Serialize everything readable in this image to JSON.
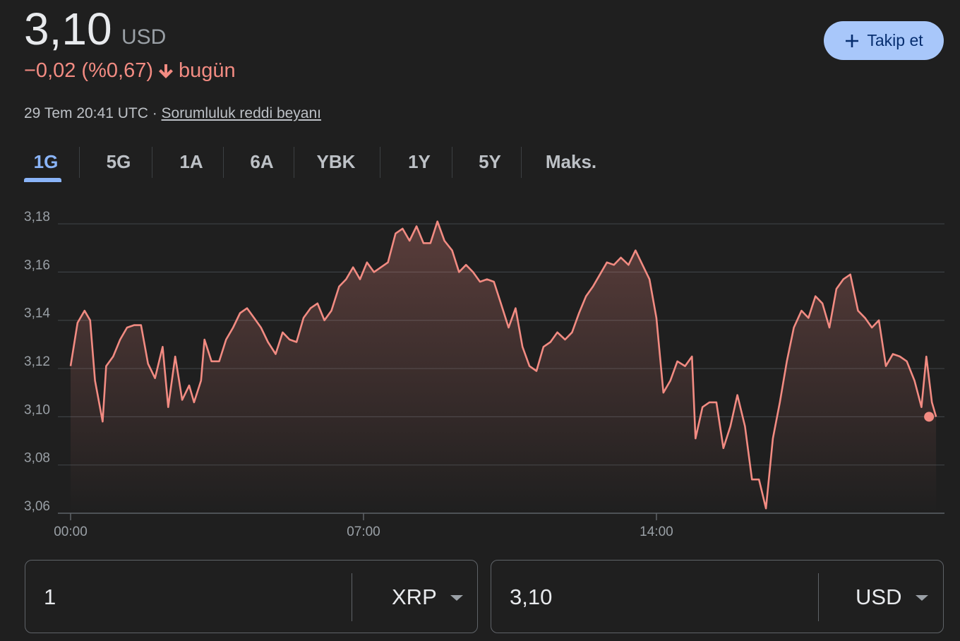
{
  "header": {
    "price": "3,10",
    "currency": "USD",
    "change": "−0,02 (%0,67)",
    "period": "bugün",
    "timestamp": "29 Tem 20:41 UTC ·",
    "disclaimer": "Sorumluluk reddi beyanı"
  },
  "follow_button": "Takip et",
  "tabs": [
    "1G",
    "5G",
    "1A",
    "6A",
    "YBK",
    "1Y",
    "5Y",
    "Maks."
  ],
  "chart_data": {
    "type": "line",
    "color": "#f28b82",
    "x": [
      0,
      10,
      20,
      28,
      35,
      46,
      51,
      61,
      71,
      81,
      91,
      101,
      111,
      121,
      132,
      140,
      150,
      160,
      170,
      177,
      187,
      192,
      202,
      213,
      223,
      233,
      243,
      253,
      263,
      273,
      283,
      294,
      304,
      314,
      324,
      334,
      344,
      354,
      364,
      374,
      385,
      395,
      405,
      415,
      425,
      435,
      445,
      455,
      466,
      476,
      486,
      496,
      506,
      516,
      526,
      536,
      547,
      557,
      567,
      577,
      587,
      597,
      607,
      617,
      628,
      638,
      648,
      658,
      668,
      678,
      688,
      698,
      709,
      719,
      729,
      739,
      749,
      759,
      769,
      779,
      789,
      800,
      810,
      820,
      830,
      840,
      850,
      860,
      870,
      881,
      891,
      896,
      906,
      916,
      926,
      936,
      946,
      956,
      967,
      977,
      987,
      997,
      1007,
      1017,
      1027,
      1037,
      1048,
      1058,
      1068,
      1078,
      1088,
      1098,
      1108,
      1118,
      1129,
      1139,
      1149,
      1159,
      1169,
      1179,
      1189,
      1199,
      1210,
      1220,
      1227,
      1235,
      1241
    ],
    "values": [
      3.121,
      3.139,
      3.144,
      3.14,
      3.115,
      3.098,
      3.121,
      3.125,
      3.132,
      3.137,
      3.138,
      3.138,
      3.122,
      3.116,
      3.129,
      3.104,
      3.125,
      3.107,
      3.113,
      3.106,
      3.115,
      3.132,
      3.123,
      3.123,
      3.132,
      3.137,
      3.143,
      3.145,
      3.141,
      3.137,
      3.131,
      3.126,
      3.135,
      3.132,
      3.131,
      3.141,
      3.145,
      3.147,
      3.14,
      3.144,
      3.154,
      3.157,
      3.162,
      3.157,
      3.164,
      3.16,
      3.162,
      3.164,
      3.176,
      3.178,
      3.173,
      3.179,
      3.172,
      3.172,
      3.181,
      3.173,
      3.169,
      3.16,
      3.163,
      3.16,
      3.156,
      3.157,
      3.156,
      3.147,
      3.137,
      3.145,
      3.129,
      3.121,
      3.119,
      3.129,
      3.131,
      3.135,
      3.132,
      3.135,
      3.143,
      3.15,
      3.154,
      3.159,
      3.164,
      3.163,
      3.166,
      3.163,
      3.169,
      3.163,
      3.157,
      3.141,
      3.11,
      3.115,
      3.123,
      3.121,
      3.125,
      3.091,
      3.104,
      3.106,
      3.106,
      3.087,
      3.096,
      3.109,
      3.096,
      3.074,
      3.074,
      3.062,
      3.091,
      3.106,
      3.123,
      3.137,
      3.144,
      3.141,
      3.15,
      3.147,
      3.137,
      3.153,
      3.157,
      3.159,
      3.144,
      3.141,
      3.137,
      3.14,
      3.121,
      3.126,
      3.125,
      3.123,
      3.115,
      3.104,
      3.125,
      3.106,
      3.1
    ],
    "xlim": [
      0,
      1253
    ],
    "xticks": [
      {
        "value": 0,
        "label": "00:00"
      },
      {
        "value": 420,
        "label": "07:00"
      },
      {
        "value": 840,
        "label": "14:00"
      }
    ],
    "ylim": [
      3.06,
      3.185
    ],
    "yticks": [
      {
        "value": 3.06,
        "label": "3,06"
      },
      {
        "value": 3.08,
        "label": "3,08"
      },
      {
        "value": 3.1,
        "label": "3,10"
      },
      {
        "value": 3.12,
        "label": "3,12"
      },
      {
        "value": 3.14,
        "label": "3,14"
      },
      {
        "value": 3.16,
        "label": "3,16"
      },
      {
        "value": 3.18,
        "label": "3,18"
      }
    ],
    "grid": true
  },
  "converter": {
    "from_amount": "1",
    "from_currency": "XRP",
    "to_amount": "3,10",
    "to_currency": "USD"
  }
}
